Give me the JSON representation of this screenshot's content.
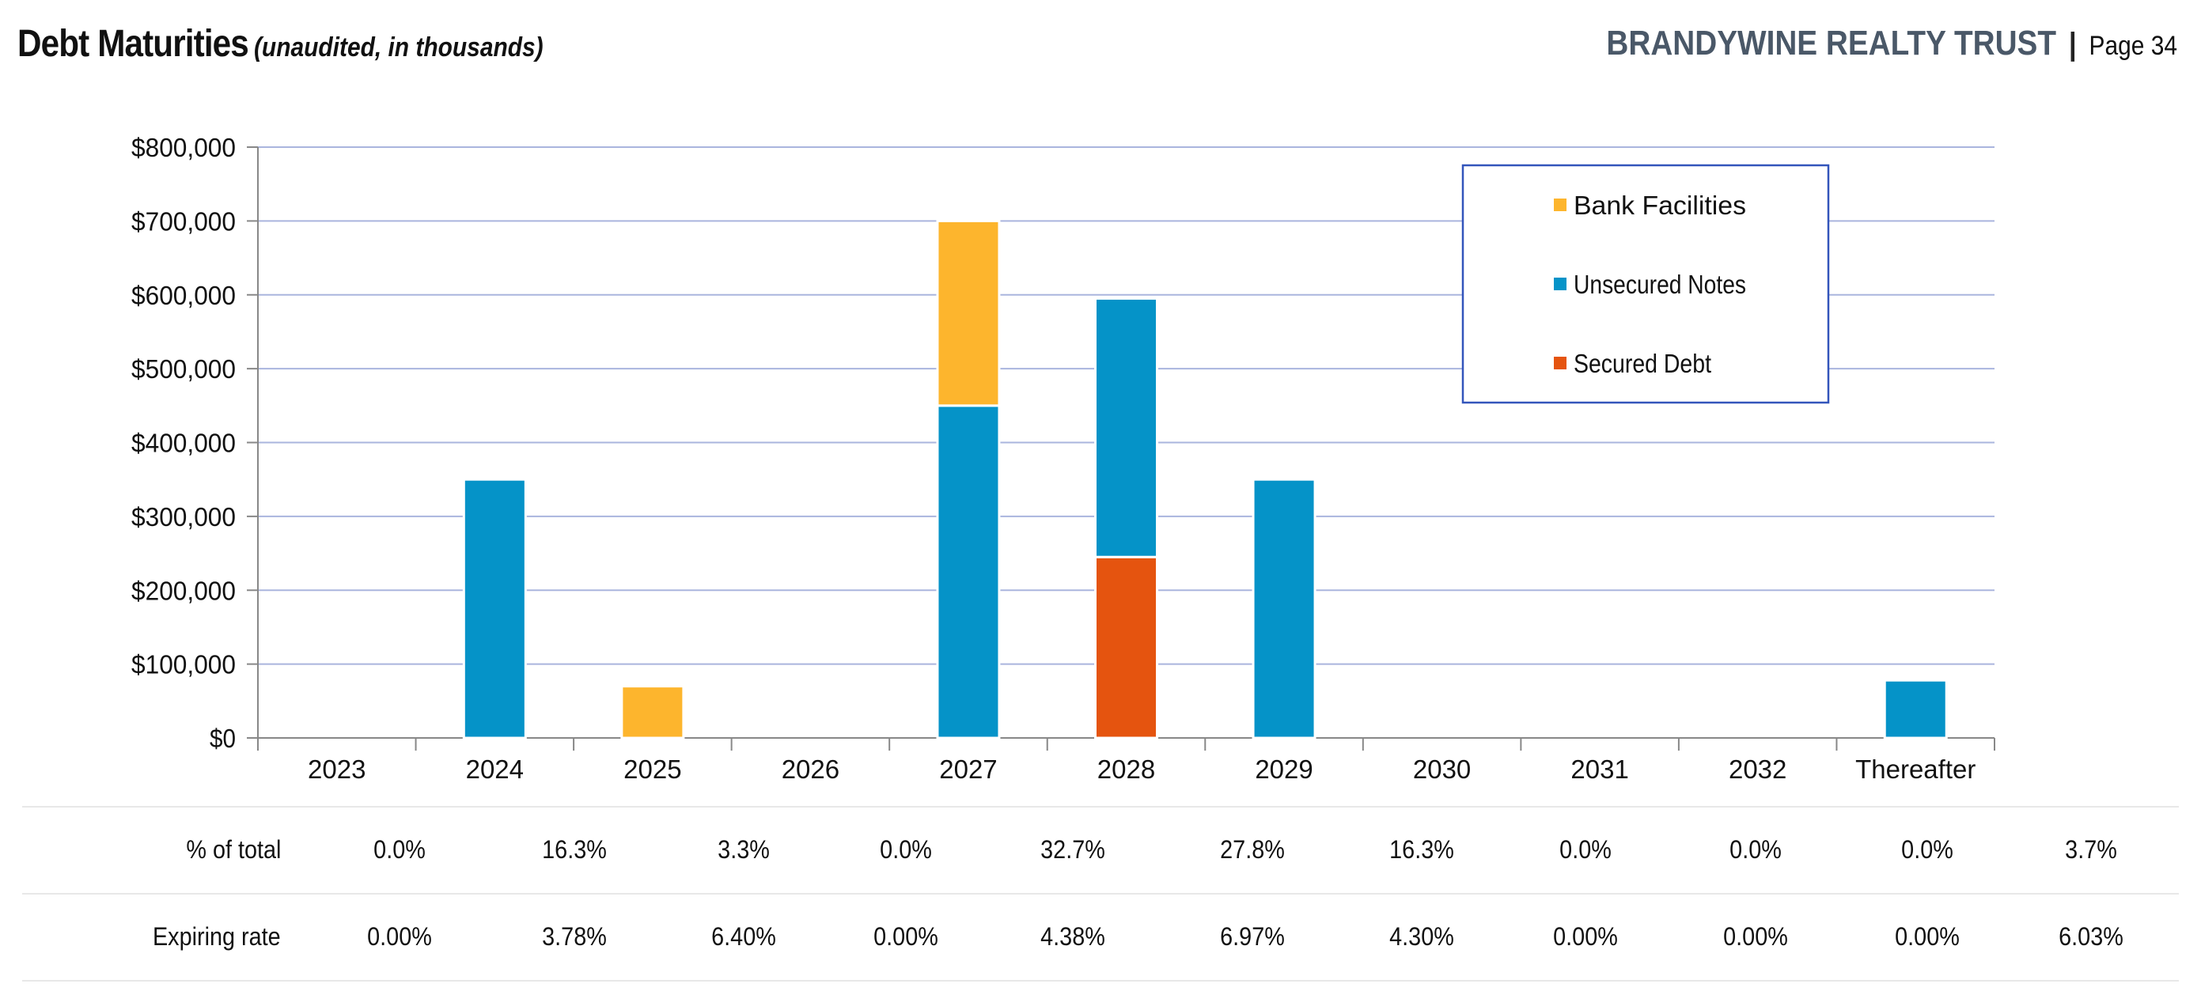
{
  "header": {
    "title": "Debt Maturities",
    "subtitle": "(unaudited, in thousands)",
    "brand": "BRANDYWINE REALTY TRUST",
    "separator": "|",
    "page": "Page 34"
  },
  "chart_data": {
    "type": "bar",
    "stacked": true,
    "categories": [
      "2023",
      "2024",
      "2025",
      "2026",
      "2027",
      "2028",
      "2029",
      "2030",
      "2031",
      "2032",
      "Thereafter"
    ],
    "series": [
      {
        "name": "Secured Debt",
        "color": "#e5540f",
        "values": [
          0,
          0,
          0,
          0,
          0,
          245000,
          0,
          0,
          0,
          0,
          0
        ]
      },
      {
        "name": "Unsecured Notes",
        "color": "#0593c8",
        "values": [
          0,
          350000,
          0,
          0,
          450000,
          350000,
          350000,
          0,
          0,
          0,
          78000
        ]
      },
      {
        "name": "Bank Facilities",
        "color": "#fdb52d",
        "values": [
          0,
          0,
          70000,
          0,
          250000,
          0,
          0,
          0,
          0,
          0,
          0
        ]
      }
    ],
    "legend_order": [
      "Bank Facilities",
      "Unsecured Notes",
      "Secured Debt"
    ],
    "legend_position": "top-right",
    "ylim": [
      0,
      800000
    ],
    "yticks": [
      "$0",
      "$100,000",
      "$200,000",
      "$300,000",
      "$400,000",
      "$500,000",
      "$600,000",
      "$700,000",
      "$800,000"
    ],
    "grid": true,
    "gridline_color": "#aab5de"
  },
  "table": {
    "rows": [
      {
        "label": "% of total",
        "values": [
          "0.0%",
          "16.3%",
          "3.3%",
          "0.0%",
          "32.7%",
          "27.8%",
          "16.3%",
          "0.0%",
          "0.0%",
          "0.0%",
          "3.7%"
        ]
      },
      {
        "label": "Expiring rate",
        "values": [
          "0.00%",
          "3.78%",
          "6.40%",
          "0.00%",
          "4.38%",
          "6.97%",
          "4.30%",
          "0.00%",
          "0.00%",
          "0.00%",
          "6.03%"
        ]
      }
    ]
  }
}
